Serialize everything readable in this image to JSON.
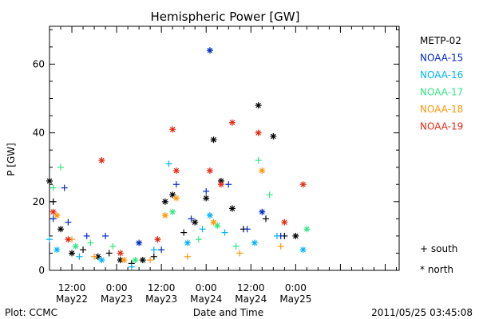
{
  "chart_data": {
    "type": "scatter",
    "title": "Hemispheric Power [GW]",
    "xlabel": "Date and Time",
    "ylabel": "P [GW]",
    "ylim": [
      0,
      71
    ],
    "xlim": [
      "2011-05-21T06:00",
      "2011-05-25T03:45"
    ],
    "yticks": [
      0,
      20,
      40,
      60
    ],
    "xticks": [
      {
        "t": "2011-05-21T12:00",
        "label": "12:00",
        "sub": "May22"
      },
      {
        "t": "2011-05-22T00:00",
        "label": "0:00",
        "sub": "May23"
      },
      {
        "t": "2011-05-22T12:00",
        "label": "12:00",
        "sub": "May23"
      },
      {
        "t": "2011-05-23T00:00",
        "label": "0:00",
        "sub": "May24"
      },
      {
        "t": "2011-05-23T12:00",
        "label": "12:00",
        "sub": "May24"
      },
      {
        "t": "2011-05-24T00:00",
        "label": "0:00",
        "sub": "May25"
      }
    ],
    "grid": false,
    "legend_position": "right",
    "markers": {
      "south": "+",
      "north": "*"
    },
    "series": [
      {
        "name": "METP-02",
        "color": "#000000",
        "points": [
          {
            "x": "2011-05-21T06:00",
            "y": 26,
            "m": "*"
          },
          {
            "x": "2011-05-21T07:00",
            "y": 20,
            "m": "+"
          },
          {
            "x": "2011-05-21T09:00",
            "y": 12,
            "m": "*"
          },
          {
            "x": "2011-05-21T12:00",
            "y": 5,
            "m": "*"
          },
          {
            "x": "2011-05-21T15:00",
            "y": 6,
            "m": "+"
          },
          {
            "x": "2011-05-21T19:00",
            "y": 4,
            "m": "*"
          },
          {
            "x": "2011-05-21T22:00",
            "y": 5,
            "m": "+"
          },
          {
            "x": "2011-05-22T01:00",
            "y": 3,
            "m": "*"
          },
          {
            "x": "2011-05-22T04:00",
            "y": 2,
            "m": "+"
          },
          {
            "x": "2011-05-22T07:00",
            "y": 3,
            "m": "*"
          },
          {
            "x": "2011-05-22T10:00",
            "y": 4,
            "m": "+"
          },
          {
            "x": "2011-05-22T13:00",
            "y": 20,
            "m": "*"
          },
          {
            "x": "2011-05-22T15:00",
            "y": 22,
            "m": "*"
          },
          {
            "x": "2011-05-22T18:00",
            "y": 11,
            "m": "+"
          },
          {
            "x": "2011-05-22T21:00",
            "y": 14,
            "m": "*"
          },
          {
            "x": "2011-05-23T00:00",
            "y": 21,
            "m": "*"
          },
          {
            "x": "2011-05-23T02:00",
            "y": 38,
            "m": "*"
          },
          {
            "x": "2011-05-23T04:00",
            "y": 26,
            "m": "*"
          },
          {
            "x": "2011-05-23T07:00",
            "y": 18,
            "m": "*"
          },
          {
            "x": "2011-05-23T10:00",
            "y": 12,
            "m": "+"
          },
          {
            "x": "2011-05-23T14:00",
            "y": 48,
            "m": "*"
          },
          {
            "x": "2011-05-23T16:00",
            "y": 15,
            "m": "+"
          },
          {
            "x": "2011-05-23T18:00",
            "y": 39,
            "m": "*"
          },
          {
            "x": "2011-05-23T21:00",
            "y": 10,
            "m": "+"
          },
          {
            "x": "2011-05-24T00:00",
            "y": 10,
            "m": "*"
          }
        ]
      },
      {
        "name": "NOAA-15",
        "color": "#0028c8",
        "points": [
          {
            "x": "2011-05-21T07:00",
            "y": 15,
            "m": "+"
          },
          {
            "x": "2011-05-21T10:00",
            "y": 24,
            "m": "+"
          },
          {
            "x": "2011-05-21T11:00",
            "y": 14,
            "m": "+"
          },
          {
            "x": "2011-05-21T16:00",
            "y": 10,
            "m": "+"
          },
          {
            "x": "2011-05-21T21:00",
            "y": 10,
            "m": "+"
          },
          {
            "x": "2011-05-22T06:00",
            "y": 8,
            "m": "*"
          },
          {
            "x": "2011-05-22T12:00",
            "y": 6,
            "m": "+"
          },
          {
            "x": "2011-05-22T16:00",
            "y": 25,
            "m": "+"
          },
          {
            "x": "2011-05-22T20:00",
            "y": 15,
            "m": "+"
          },
          {
            "x": "2011-05-23T00:00",
            "y": 23,
            "m": "+"
          },
          {
            "x": "2011-05-23T01:00",
            "y": 64,
            "m": "*"
          },
          {
            "x": "2011-05-23T06:00",
            "y": 25,
            "m": "+"
          },
          {
            "x": "2011-05-23T11:00",
            "y": 12,
            "m": "+"
          },
          {
            "x": "2011-05-23T15:00",
            "y": 17,
            "m": "*"
          },
          {
            "x": "2011-05-23T20:00",
            "y": 10,
            "m": "+"
          }
        ]
      },
      {
        "name": "NOAA-16",
        "color": "#00b4ff",
        "points": [
          {
            "x": "2011-05-21T06:00",
            "y": 9,
            "m": "+"
          },
          {
            "x": "2011-05-21T08:00",
            "y": 6,
            "m": "*"
          },
          {
            "x": "2011-05-21T14:00",
            "y": 4,
            "m": "+"
          },
          {
            "x": "2011-05-21T20:00",
            "y": 3,
            "m": "*"
          },
          {
            "x": "2011-05-22T04:00",
            "y": 1,
            "m": "+"
          },
          {
            "x": "2011-05-22T10:00",
            "y": 6,
            "m": "+"
          },
          {
            "x": "2011-05-22T14:00",
            "y": 31,
            "m": "+"
          },
          {
            "x": "2011-05-22T19:00",
            "y": 8,
            "m": "*"
          },
          {
            "x": "2011-05-22T23:00",
            "y": 12,
            "m": "+"
          },
          {
            "x": "2011-05-23T01:00",
            "y": 16,
            "m": "*"
          },
          {
            "x": "2011-05-23T05:00",
            "y": 11,
            "m": "+"
          },
          {
            "x": "2011-05-23T13:00",
            "y": 8,
            "m": "*"
          },
          {
            "x": "2011-05-23T19:00",
            "y": 10,
            "m": "+"
          },
          {
            "x": "2011-05-24T02:00",
            "y": 6,
            "m": "*"
          }
        ]
      },
      {
        "name": "NOAA-17",
        "color": "#32e682",
        "points": [
          {
            "x": "2011-05-21T07:00",
            "y": 24,
            "m": "+"
          },
          {
            "x": "2011-05-21T09:00",
            "y": 30,
            "m": "+"
          },
          {
            "x": "2011-05-21T13:00",
            "y": 7,
            "m": "*"
          },
          {
            "x": "2011-05-21T17:00",
            "y": 8,
            "m": "+"
          },
          {
            "x": "2011-05-21T23:00",
            "y": 7,
            "m": "+"
          },
          {
            "x": "2011-05-22T05:00",
            "y": 3,
            "m": "*"
          },
          {
            "x": "2011-05-22T11:00",
            "y": 9,
            "m": "+"
          },
          {
            "x": "2011-05-22T15:00",
            "y": 17,
            "m": "*"
          },
          {
            "x": "2011-05-22T22:00",
            "y": 9,
            "m": "+"
          },
          {
            "x": "2011-05-23T03:00",
            "y": 13,
            "m": "*"
          },
          {
            "x": "2011-05-23T08:00",
            "y": 7,
            "m": "+"
          },
          {
            "x": "2011-05-23T14:00",
            "y": 32,
            "m": "+"
          },
          {
            "x": "2011-05-23T17:00",
            "y": 22,
            "m": "+"
          },
          {
            "x": "2011-05-24T03:00",
            "y": 12,
            "m": "*"
          }
        ]
      },
      {
        "name": "NOAA-18",
        "color": "#ff960a",
        "points": [
          {
            "x": "2011-05-21T08:00",
            "y": 16,
            "m": "*"
          },
          {
            "x": "2011-05-21T12:00",
            "y": 9,
            "m": "+"
          },
          {
            "x": "2011-05-21T18:00",
            "y": 4,
            "m": "+"
          },
          {
            "x": "2011-05-22T02:00",
            "y": 3,
            "m": "*"
          },
          {
            "x": "2011-05-22T09:00",
            "y": 3,
            "m": "+"
          },
          {
            "x": "2011-05-22T13:00",
            "y": 16,
            "m": "*"
          },
          {
            "x": "2011-05-22T16:00",
            "y": 21,
            "m": "*"
          },
          {
            "x": "2011-05-22T19:00",
            "y": 4,
            "m": "+"
          },
          {
            "x": "2011-05-23T02:00",
            "y": 14,
            "m": "*"
          },
          {
            "x": "2011-05-23T09:00",
            "y": 5,
            "m": "+"
          },
          {
            "x": "2011-05-23T15:00",
            "y": 29,
            "m": "*"
          },
          {
            "x": "2011-05-23T20:00",
            "y": 7,
            "m": "+"
          }
        ]
      },
      {
        "name": "NOAA-19",
        "color": "#e62814",
        "points": [
          {
            "x": "2011-05-21T07:00",
            "y": 17,
            "m": "*"
          },
          {
            "x": "2011-05-21T11:00",
            "y": 9,
            "m": "*"
          },
          {
            "x": "2011-05-21T20:00",
            "y": 32,
            "m": "*"
          },
          {
            "x": "2011-05-22T01:00",
            "y": 5,
            "m": "*"
          },
          {
            "x": "2011-05-22T11:00",
            "y": 9,
            "m": "*"
          },
          {
            "x": "2011-05-22T15:00",
            "y": 41,
            "m": "*"
          },
          {
            "x": "2011-05-22T16:00",
            "y": 29,
            "m": "*"
          },
          {
            "x": "2011-05-23T01:00",
            "y": 29,
            "m": "*"
          },
          {
            "x": "2011-05-23T04:00",
            "y": 25,
            "m": "*"
          },
          {
            "x": "2011-05-23T07:00",
            "y": 43,
            "m": "*"
          },
          {
            "x": "2011-05-23T14:00",
            "y": 40,
            "m": "*"
          },
          {
            "x": "2011-05-23T21:00",
            "y": 14,
            "m": "*"
          },
          {
            "x": "2011-05-24T02:00",
            "y": 25,
            "m": "*"
          }
        ]
      }
    ]
  },
  "footer": {
    "plot_credit": "Plot: CCMC",
    "timestamp": "2011/05/25 03:45:08"
  },
  "legend_markers": {
    "south": "+ south",
    "north": "* north"
  }
}
